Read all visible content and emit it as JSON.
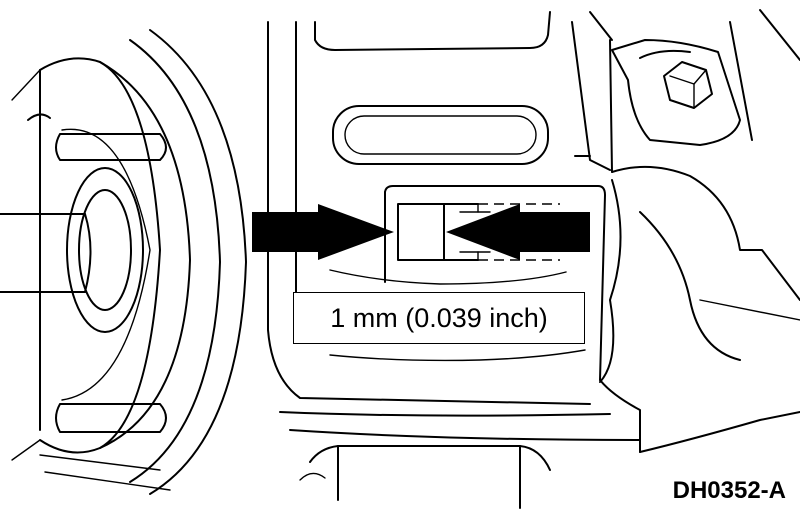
{
  "callout": {
    "dimension_label": "1 mm (0.039 inch)"
  },
  "figure": {
    "code": "DH0352-A"
  },
  "colors": {
    "ink": "#000000",
    "paper": "#ffffff"
  },
  "icons": {
    "left_arrow": "arrow-right-icon",
    "right_arrow": "arrow-left-icon"
  }
}
